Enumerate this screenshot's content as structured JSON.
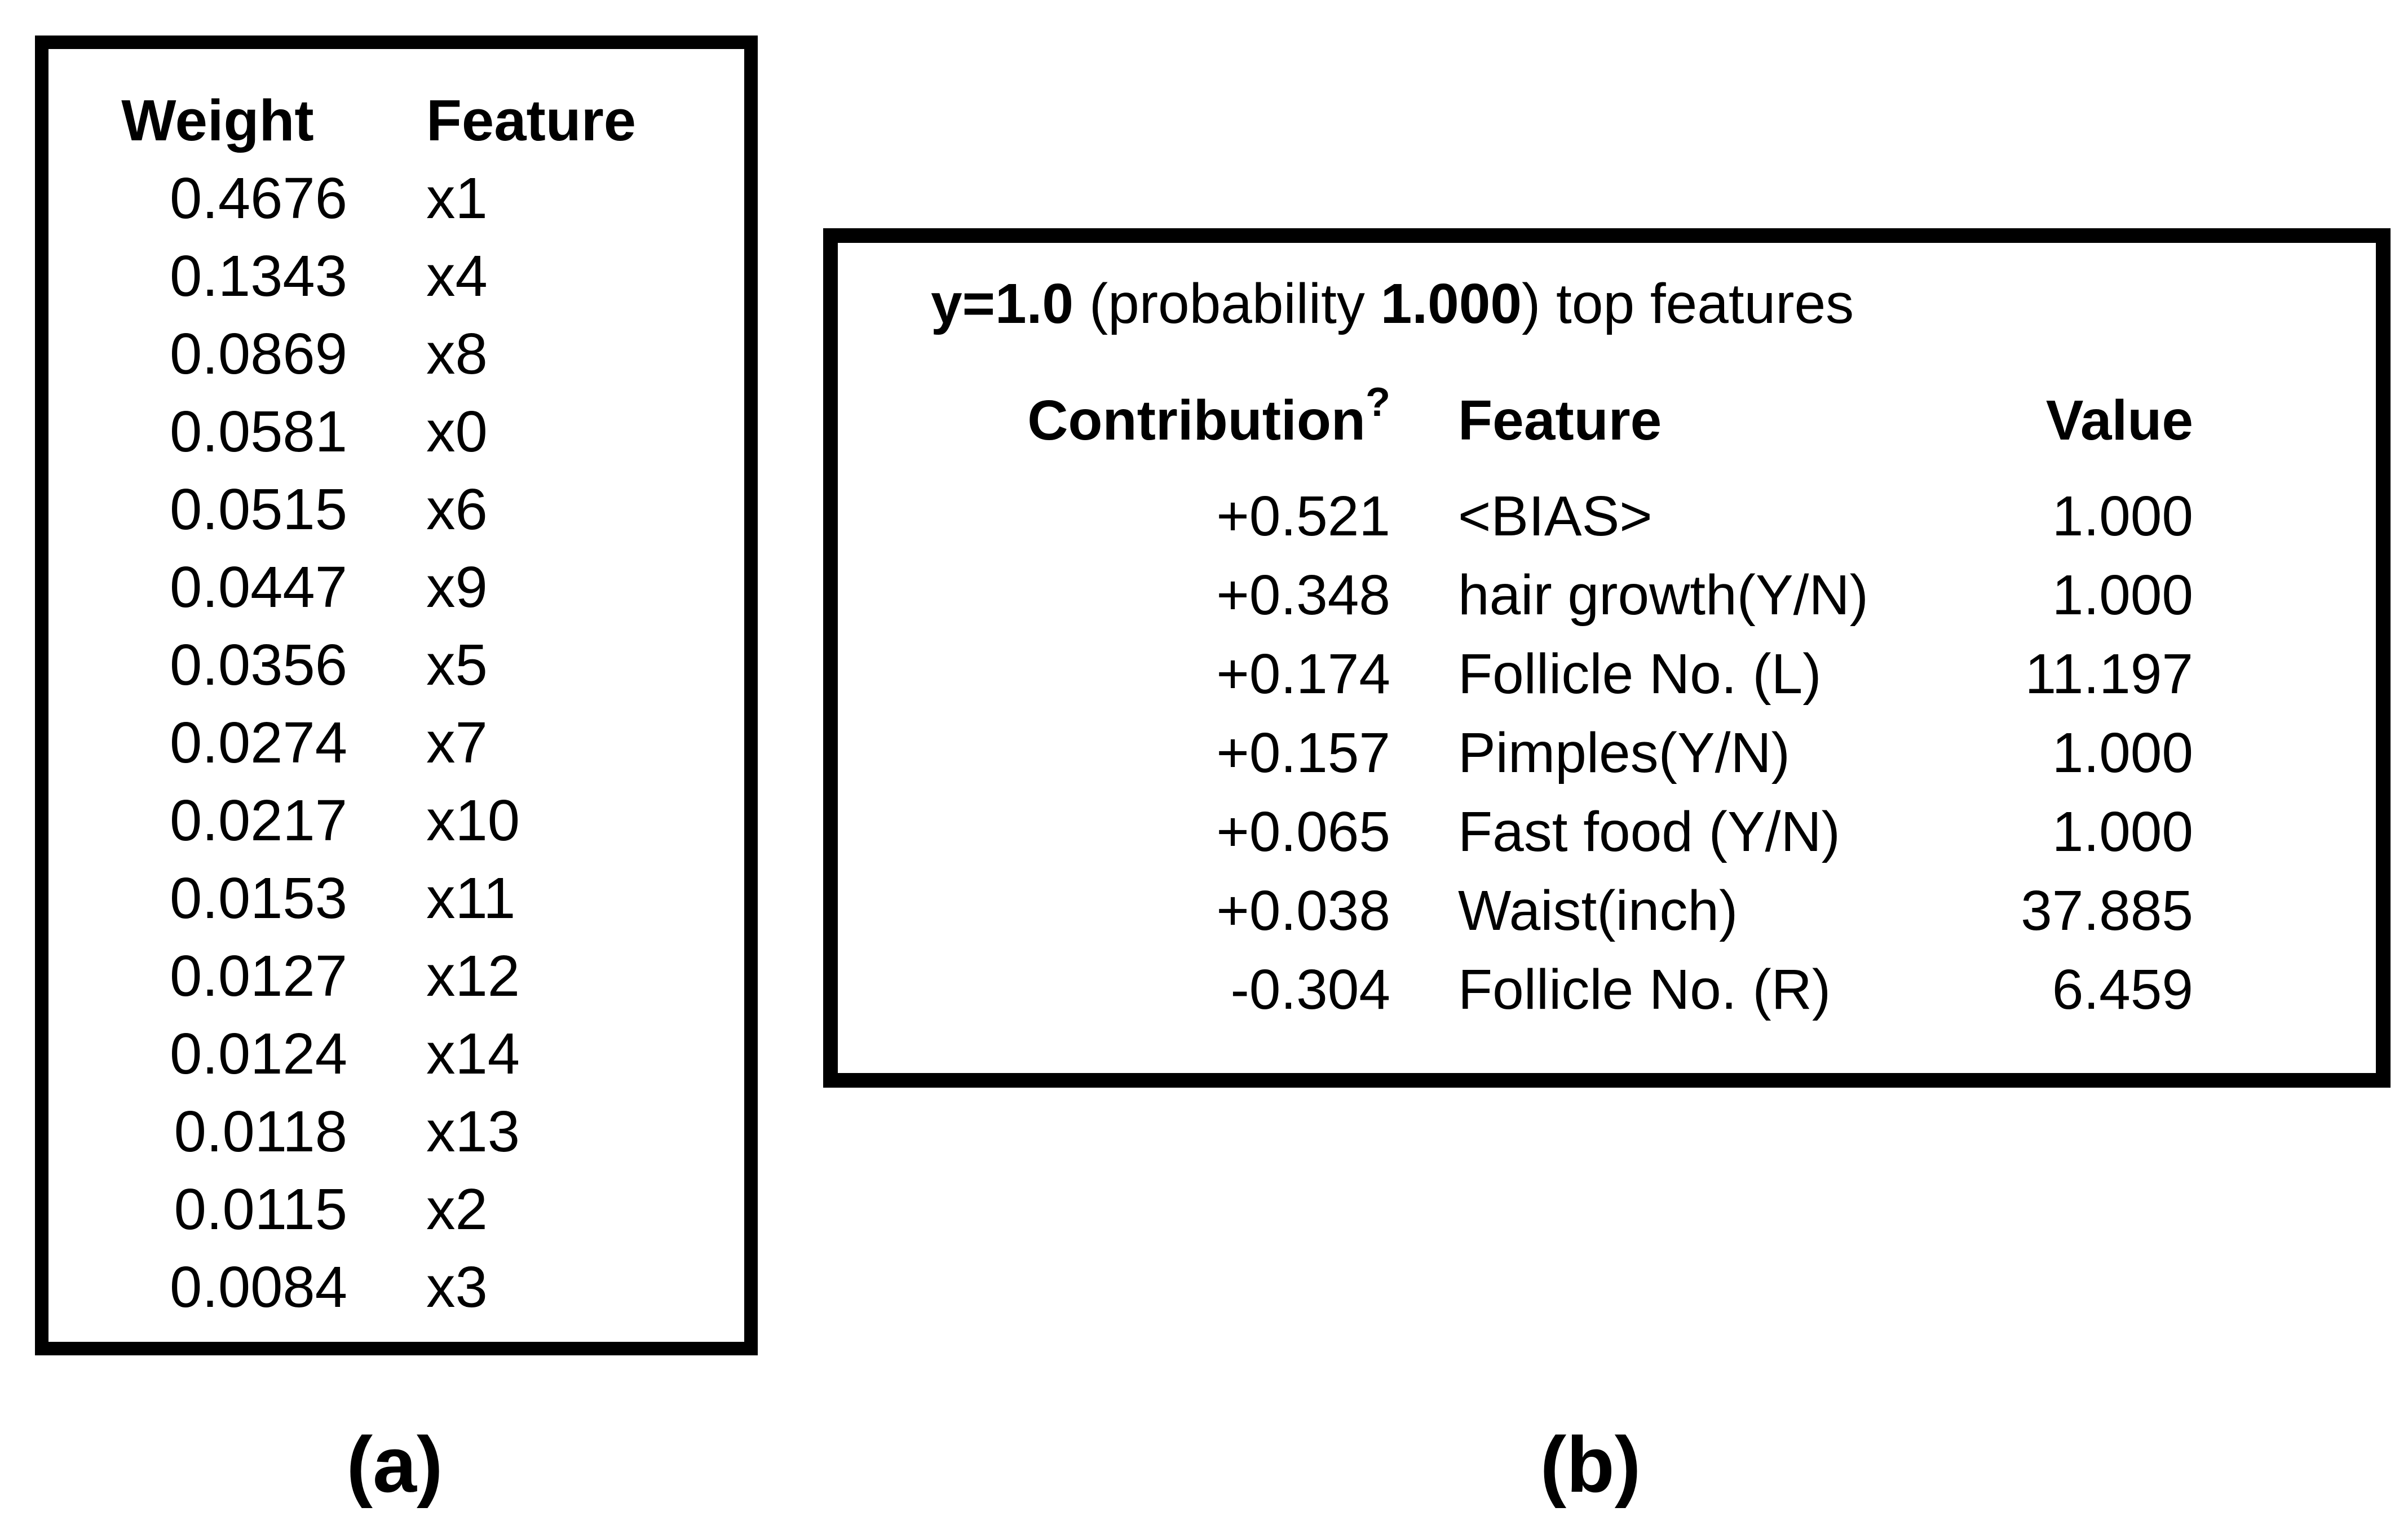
{
  "panel_a": {
    "label": "(a)",
    "columns": {
      "weight": "Weight",
      "feature": "Feature"
    },
    "rows": [
      {
        "weight": "0.4676",
        "feature": "x1"
      },
      {
        "weight": "0.1343",
        "feature": "x4"
      },
      {
        "weight": "0.0869",
        "feature": "x8"
      },
      {
        "weight": "0.0581",
        "feature": "x0"
      },
      {
        "weight": "0.0515",
        "feature": "x6"
      },
      {
        "weight": "0.0447",
        "feature": "x9"
      },
      {
        "weight": "0.0356",
        "feature": "x5"
      },
      {
        "weight": "0.0274",
        "feature": "x7"
      },
      {
        "weight": "0.0217",
        "feature": "x10"
      },
      {
        "weight": "0.0153",
        "feature": "x11"
      },
      {
        "weight": "0.0127",
        "feature": "x12"
      },
      {
        "weight": "0.0124",
        "feature": "x14"
      },
      {
        "weight": "0.0118",
        "feature": "x13"
      },
      {
        "weight": "0.0115",
        "feature": "x2"
      },
      {
        "weight": "0.0084",
        "feature": "x3"
      }
    ]
  },
  "panel_b": {
    "label": "(b)",
    "title": {
      "class_bold": "y=1.0",
      "mid": " (probability ",
      "probability_bold": "1.000",
      "suffix": ") top features"
    },
    "columns": {
      "contribution": "Contribution",
      "contribution_sup": "?",
      "feature": "Feature",
      "value": "Value"
    },
    "rows": [
      {
        "contribution": "+0.521",
        "feature": "<BIAS>",
        "value": "1.000"
      },
      {
        "contribution": "+0.348",
        "feature": "hair growth(Y/N)",
        "value": "1.000"
      },
      {
        "contribution": "+0.174",
        "feature": "Follicle No. (L)",
        "value": "11.197"
      },
      {
        "contribution": "+0.157",
        "feature": "Pimples(Y/N)",
        "value": "1.000"
      },
      {
        "contribution": "+0.065",
        "feature": "Fast food (Y/N)",
        "value": "1.000"
      },
      {
        "contribution": "+0.038",
        "feature": "Waist(inch)",
        "value": "37.885"
      },
      {
        "contribution": "-0.304",
        "feature": "Follicle No. (R)",
        "value": "6.459"
      }
    ]
  },
  "colors": {
    "text": "#000000",
    "border": "#000000",
    "background": "#ffffff"
  }
}
